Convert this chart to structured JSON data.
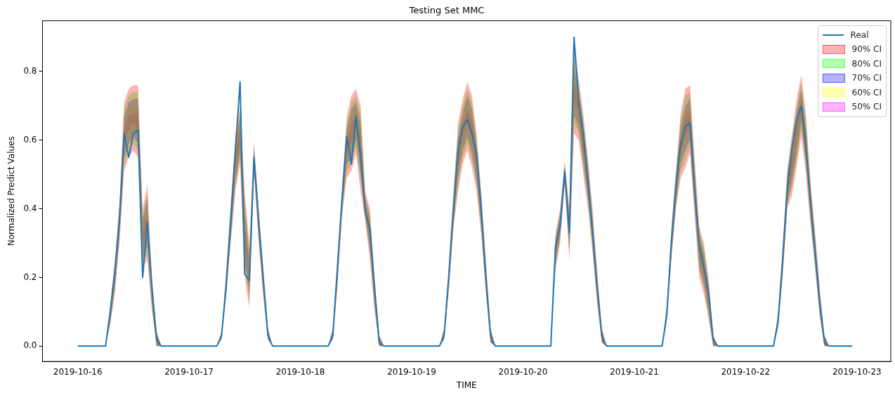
{
  "chart_data": {
    "type": "line",
    "title": "Testing Set MMC",
    "xlabel": "TIME",
    "ylabel": "Normalized Predict Values",
    "x": [
      "2019-10-16T00:00",
      "2019-10-16T06:00",
      "2019-10-16T07:00",
      "2019-10-16T08:00",
      "2019-10-16T09:00",
      "2019-10-16T10:00",
      "2019-10-16T11:00",
      "2019-10-16T12:00",
      "2019-10-16T13:00",
      "2019-10-16T14:00",
      "2019-10-16T15:00",
      "2019-10-16T16:00",
      "2019-10-16T17:00",
      "2019-10-16T18:00",
      "2019-10-17T06:00",
      "2019-10-17T07:00",
      "2019-10-17T08:00",
      "2019-10-17T09:00",
      "2019-10-17T10:00",
      "2019-10-17T11:00",
      "2019-10-17T12:00",
      "2019-10-17T13:00",
      "2019-10-17T14:00",
      "2019-10-17T15:00",
      "2019-10-17T16:00",
      "2019-10-17T17:00",
      "2019-10-17T18:00",
      "2019-10-18T06:00",
      "2019-10-18T07:00",
      "2019-10-18T08:00",
      "2019-10-18T09:00",
      "2019-10-18T10:00",
      "2019-10-18T11:00",
      "2019-10-18T12:00",
      "2019-10-18T13:00",
      "2019-10-18T14:00",
      "2019-10-18T15:00",
      "2019-10-18T16:00",
      "2019-10-18T17:00",
      "2019-10-18T18:00",
      "2019-10-19T06:00",
      "2019-10-19T07:00",
      "2019-10-19T08:00",
      "2019-10-19T09:00",
      "2019-10-19T10:00",
      "2019-10-19T11:00",
      "2019-10-19T12:00",
      "2019-10-19T13:00",
      "2019-10-19T14:00",
      "2019-10-19T15:00",
      "2019-10-19T16:00",
      "2019-10-19T17:00",
      "2019-10-19T18:00",
      "2019-10-20T06:00",
      "2019-10-20T07:00",
      "2019-10-20T08:00",
      "2019-10-20T09:00",
      "2019-10-20T10:00",
      "2019-10-20T11:00",
      "2019-10-20T12:00",
      "2019-10-20T13:00",
      "2019-10-20T14:00",
      "2019-10-20T15:00",
      "2019-10-20T16:00",
      "2019-10-20T17:00",
      "2019-10-20T18:00",
      "2019-10-21T06:00",
      "2019-10-21T07:00",
      "2019-10-21T08:00",
      "2019-10-21T09:00",
      "2019-10-21T10:00",
      "2019-10-21T11:00",
      "2019-10-21T12:00",
      "2019-10-21T13:00",
      "2019-10-21T14:00",
      "2019-10-21T15:00",
      "2019-10-21T16:00",
      "2019-10-21T17:00",
      "2019-10-21T18:00",
      "2019-10-22T06:00",
      "2019-10-22T07:00",
      "2019-10-22T08:00",
      "2019-10-22T09:00",
      "2019-10-22T10:00",
      "2019-10-22T11:00",
      "2019-10-22T12:00",
      "2019-10-22T13:00",
      "2019-10-22T14:00",
      "2019-10-22T15:00",
      "2019-10-22T16:00",
      "2019-10-22T17:00",
      "2019-10-22T18:00",
      "2019-10-22T23:00"
    ],
    "series": [
      {
        "name": "Real",
        "color": "#1f77b4",
        "values": [
          0,
          0,
          0.1,
          0.22,
          0.37,
          0.62,
          0.55,
          0.62,
          0.63,
          0.2,
          0.36,
          0.17,
          0.02,
          0,
          0,
          0.03,
          0.17,
          0.37,
          0.57,
          0.77,
          0.21,
          0.19,
          0.55,
          0.37,
          0.2,
          0.03,
          0,
          0,
          0.03,
          0.23,
          0.43,
          0.61,
          0.53,
          0.67,
          0.55,
          0.39,
          0.34,
          0.17,
          0.01,
          0,
          0,
          0.03,
          0.2,
          0.4,
          0.57,
          0.64,
          0.66,
          0.62,
          0.56,
          0.4,
          0.2,
          0.03,
          0,
          0,
          0.29,
          0.35,
          0.51,
          0.33,
          0.9,
          0.72,
          0.62,
          0.48,
          0.33,
          0.17,
          0.03,
          0,
          0,
          0.09,
          0.3,
          0.47,
          0.59,
          0.64,
          0.65,
          0.45,
          0.3,
          0.23,
          0.16,
          0.02,
          0,
          0,
          0.07,
          0.25,
          0.46,
          0.58,
          0.66,
          0.7,
          0.58,
          0.42,
          0.27,
          0.12,
          0.01,
          0,
          0
        ]
      },
      {
        "name": "90% CI",
        "color": "#ff0000",
        "values": [
          null,
          null,
          null,
          null,
          null,
          null,
          null,
          null,
          null,
          null,
          null,
          null,
          null,
          null,
          null,
          null,
          null,
          null,
          null,
          null,
          null,
          null,
          null,
          null,
          null,
          null,
          null,
          null,
          null,
          null,
          null,
          null,
          null,
          null,
          null,
          null,
          null,
          null,
          null,
          null,
          null,
          null,
          null,
          null,
          null,
          null,
          null,
          null,
          null,
          null,
          null,
          null,
          null,
          null,
          null,
          null,
          null,
          null,
          null,
          null,
          null,
          null,
          null,
          null,
          null,
          null,
          null,
          null,
          null,
          null,
          null,
          null,
          null,
          null,
          null,
          null,
          null,
          null,
          null,
          null,
          null,
          null,
          null,
          null,
          null,
          null,
          null,
          null,
          null,
          null,
          null,
          null,
          null
        ],
        "lower": [
          0,
          0,
          0.06,
          0.15,
          0.3,
          0.51,
          0.55,
          0.57,
          0.55,
          0.23,
          0.25,
          0.1,
          0,
          0,
          0,
          0.02,
          0.15,
          0.3,
          0.45,
          0.53,
          0.2,
          0.11,
          0.5,
          0.3,
          0.14,
          0.02,
          0,
          0,
          0.02,
          0.17,
          0.38,
          0.49,
          0.51,
          0.56,
          0.45,
          0.36,
          0.25,
          0.1,
          0,
          0,
          0,
          0.02,
          0.16,
          0.34,
          0.45,
          0.53,
          0.57,
          0.52,
          0.45,
          0.32,
          0.15,
          0.01,
          0,
          0,
          0.22,
          0.3,
          0.47,
          0.25,
          0.62,
          0.6,
          0.5,
          0.4,
          0.27,
          0.12,
          0.01,
          0,
          0,
          0.07,
          0.25,
          0.4,
          0.49,
          0.52,
          0.56,
          0.38,
          0.2,
          0.15,
          0.08,
          0,
          0,
          0,
          0.05,
          0.2,
          0.4,
          0.44,
          0.52,
          0.61,
          0.5,
          0.35,
          0.22,
          0.08,
          0,
          0,
          0
        ],
        "upper": [
          0,
          0,
          0.12,
          0.25,
          0.42,
          0.71,
          0.75,
          0.76,
          0.76,
          0.4,
          0.47,
          0.2,
          0.04,
          0,
          0,
          0.04,
          0.22,
          0.42,
          0.62,
          0.7,
          0.45,
          0.3,
          0.6,
          0.4,
          0.22,
          0.05,
          0,
          0,
          0.05,
          0.26,
          0.47,
          0.67,
          0.73,
          0.75,
          0.7,
          0.45,
          0.4,
          0.2,
          0.03,
          0,
          0,
          0.05,
          0.24,
          0.45,
          0.65,
          0.72,
          0.77,
          0.73,
          0.62,
          0.45,
          0.25,
          0.05,
          0,
          0,
          0.33,
          0.4,
          0.54,
          0.4,
          0.87,
          0.78,
          0.68,
          0.55,
          0.4,
          0.22,
          0.05,
          0,
          0,
          0.12,
          0.35,
          0.52,
          0.68,
          0.75,
          0.76,
          0.55,
          0.35,
          0.3,
          0.2,
          0.03,
          0,
          0,
          0.1,
          0.3,
          0.52,
          0.62,
          0.72,
          0.79,
          0.68,
          0.48,
          0.33,
          0.17,
          0.03,
          0,
          0
        ]
      },
      {
        "name": "80% CI",
        "color": "#00ff00",
        "values": [
          null,
          null,
          null,
          null,
          null,
          null,
          null,
          null,
          null,
          null,
          null,
          null,
          null,
          null,
          null,
          null,
          null,
          null,
          null,
          null,
          null,
          null,
          null,
          null,
          null,
          null,
          null,
          null,
          null,
          null,
          null,
          null,
          null,
          null,
          null,
          null,
          null,
          null,
          null,
          null,
          null,
          null,
          null,
          null,
          null,
          null,
          null,
          null,
          null,
          null,
          null,
          null,
          null,
          null,
          null,
          null,
          null,
          null,
          null,
          null,
          null,
          null,
          null,
          null,
          null,
          null,
          null,
          null,
          null,
          null,
          null,
          null,
          null,
          null,
          null,
          null,
          null,
          null,
          null,
          null,
          null,
          null,
          null,
          null,
          null,
          null,
          null,
          null,
          null,
          null,
          null,
          null,
          null
        ],
        "lower": [
          0,
          0,
          0.07,
          0.16,
          0.31,
          0.53,
          0.57,
          0.59,
          0.57,
          0.25,
          0.27,
          0.11,
          0,
          0,
          0,
          0.02,
          0.16,
          0.31,
          0.47,
          0.55,
          0.23,
          0.13,
          0.51,
          0.31,
          0.15,
          0.02,
          0,
          0,
          0.02,
          0.18,
          0.39,
          0.51,
          0.53,
          0.58,
          0.48,
          0.37,
          0.27,
          0.11,
          0,
          0,
          0,
          0.02,
          0.17,
          0.35,
          0.47,
          0.55,
          0.59,
          0.54,
          0.47,
          0.33,
          0.16,
          0.01,
          0,
          0,
          0.23,
          0.31,
          0.48,
          0.27,
          0.65,
          0.62,
          0.52,
          0.42,
          0.28,
          0.13,
          0.01,
          0,
          0,
          0.08,
          0.26,
          0.41,
          0.51,
          0.54,
          0.58,
          0.4,
          0.22,
          0.17,
          0.09,
          0,
          0,
          0,
          0.06,
          0.21,
          0.41,
          0.46,
          0.54,
          0.63,
          0.52,
          0.36,
          0.23,
          0.09,
          0,
          0,
          0
        ],
        "upper": [
          0,
          0,
          0.11,
          0.24,
          0.41,
          0.69,
          0.73,
          0.74,
          0.74,
          0.38,
          0.45,
          0.19,
          0.04,
          0,
          0,
          0.04,
          0.21,
          0.41,
          0.6,
          0.68,
          0.43,
          0.28,
          0.59,
          0.39,
          0.21,
          0.05,
          0,
          0,
          0.05,
          0.25,
          0.46,
          0.65,
          0.71,
          0.73,
          0.68,
          0.44,
          0.39,
          0.19,
          0.03,
          0,
          0,
          0.05,
          0.23,
          0.44,
          0.63,
          0.7,
          0.75,
          0.71,
          0.6,
          0.44,
          0.24,
          0.05,
          0,
          0,
          0.32,
          0.39,
          0.53,
          0.39,
          0.85,
          0.76,
          0.66,
          0.54,
          0.39,
          0.21,
          0.05,
          0,
          0,
          0.12,
          0.34,
          0.51,
          0.66,
          0.73,
          0.74,
          0.53,
          0.34,
          0.29,
          0.19,
          0.03,
          0,
          0,
          0.1,
          0.29,
          0.51,
          0.6,
          0.7,
          0.77,
          0.66,
          0.47,
          0.32,
          0.16,
          0.03,
          0,
          0
        ]
      },
      {
        "name": "70% CI",
        "color": "#0000ff",
        "values": [
          null,
          null,
          null,
          null,
          null,
          null,
          null,
          null,
          null,
          null,
          null,
          null,
          null,
          null,
          null,
          null,
          null,
          null,
          null,
          null,
          null,
          null,
          null,
          null,
          null,
          null,
          null,
          null,
          null,
          null,
          null,
          null,
          null,
          null,
          null,
          null,
          null,
          null,
          null,
          null,
          null,
          null,
          null,
          null,
          null,
          null,
          null,
          null,
          null,
          null,
          null,
          null,
          null,
          null,
          null,
          null,
          null,
          null,
          null,
          null,
          null,
          null,
          null,
          null,
          null,
          null,
          null,
          null,
          null,
          null,
          null,
          null,
          null,
          null,
          null,
          null,
          null,
          null,
          null,
          null,
          null,
          null,
          null,
          null,
          null,
          null,
          null,
          null,
          null,
          null,
          null,
          null,
          null
        ],
        "lower": [
          0,
          0,
          0.07,
          0.17,
          0.32,
          0.55,
          0.59,
          0.61,
          0.59,
          0.26,
          0.29,
          0.12,
          0,
          0,
          0,
          0.02,
          0.16,
          0.32,
          0.48,
          0.56,
          0.25,
          0.15,
          0.52,
          0.32,
          0.16,
          0.02,
          0,
          0,
          0.02,
          0.19,
          0.4,
          0.53,
          0.55,
          0.6,
          0.5,
          0.38,
          0.28,
          0.12,
          0,
          0,
          0,
          0.02,
          0.18,
          0.36,
          0.49,
          0.57,
          0.61,
          0.56,
          0.48,
          0.35,
          0.17,
          0.01,
          0,
          0,
          0.24,
          0.32,
          0.48,
          0.28,
          0.67,
          0.64,
          0.54,
          0.43,
          0.3,
          0.14,
          0.01,
          0,
          0,
          0.08,
          0.27,
          0.42,
          0.53,
          0.57,
          0.6,
          0.41,
          0.23,
          0.18,
          0.1,
          0,
          0,
          0,
          0.06,
          0.22,
          0.42,
          0.48,
          0.56,
          0.65,
          0.54,
          0.38,
          0.24,
          0.1,
          0,
          0,
          0
        ],
        "upper": [
          0,
          0,
          0.11,
          0.23,
          0.4,
          0.67,
          0.71,
          0.72,
          0.72,
          0.37,
          0.43,
          0.18,
          0.04,
          0,
          0,
          0.04,
          0.21,
          0.4,
          0.59,
          0.67,
          0.4,
          0.26,
          0.58,
          0.38,
          0.2,
          0.05,
          0,
          0,
          0.05,
          0.24,
          0.45,
          0.63,
          0.69,
          0.71,
          0.65,
          0.43,
          0.37,
          0.18,
          0.03,
          0,
          0,
          0.05,
          0.22,
          0.43,
          0.61,
          0.68,
          0.73,
          0.69,
          0.59,
          0.42,
          0.23,
          0.05,
          0,
          0,
          0.31,
          0.38,
          0.53,
          0.37,
          0.82,
          0.74,
          0.64,
          0.52,
          0.37,
          0.2,
          0.05,
          0,
          0,
          0.11,
          0.33,
          0.5,
          0.64,
          0.7,
          0.72,
          0.52,
          0.32,
          0.27,
          0.18,
          0.03,
          0,
          0,
          0.09,
          0.28,
          0.5,
          0.58,
          0.68,
          0.75,
          0.64,
          0.45,
          0.31,
          0.15,
          0.03,
          0,
          0
        ]
      },
      {
        "name": "60% CI",
        "color": "#ffff00",
        "values": [
          null,
          null,
          null,
          null,
          null,
          null,
          null,
          null,
          null,
          null,
          null,
          null,
          null,
          null,
          null,
          null,
          null,
          null,
          null,
          null,
          null,
          null,
          null,
          null,
          null,
          null,
          null,
          null,
          null,
          null,
          null,
          null,
          null,
          null,
          null,
          null,
          null,
          null,
          null,
          null,
          null,
          null,
          null,
          null,
          null,
          null,
          null,
          null,
          null,
          null,
          null,
          null,
          null,
          null,
          null,
          null,
          null,
          null,
          null,
          null,
          null,
          null,
          null,
          null,
          null,
          null,
          null,
          null,
          null,
          null,
          null,
          null,
          null,
          null,
          null,
          null,
          null,
          null,
          null,
          null,
          null,
          null,
          null,
          null,
          null,
          null,
          null,
          null,
          null,
          null,
          null,
          null,
          null
        ],
        "lower": [
          0,
          0,
          0.08,
          0.18,
          0.34,
          0.57,
          0.61,
          0.63,
          0.61,
          0.28,
          0.32,
          0.13,
          0,
          0,
          0,
          0.02,
          0.17,
          0.34,
          0.5,
          0.58,
          0.28,
          0.17,
          0.53,
          0.33,
          0.16,
          0.02,
          0,
          0,
          0.02,
          0.2,
          0.41,
          0.54,
          0.58,
          0.62,
          0.53,
          0.39,
          0.3,
          0.13,
          0,
          0,
          0,
          0.02,
          0.18,
          0.37,
          0.51,
          0.59,
          0.63,
          0.58,
          0.5,
          0.36,
          0.18,
          0.01,
          0,
          0,
          0.25,
          0.33,
          0.49,
          0.3,
          0.7,
          0.65,
          0.55,
          0.45,
          0.31,
          0.15,
          0.01,
          0,
          0,
          0.09,
          0.28,
          0.44,
          0.55,
          0.59,
          0.62,
          0.43,
          0.25,
          0.2,
          0.12,
          0,
          0,
          0,
          0.07,
          0.23,
          0.44,
          0.49,
          0.58,
          0.66,
          0.55,
          0.39,
          0.25,
          0.11,
          0,
          0,
          0
        ],
        "upper": [
          0,
          0,
          0.1,
          0.22,
          0.38,
          0.65,
          0.69,
          0.7,
          0.7,
          0.35,
          0.4,
          0.17,
          0.04,
          0,
          0,
          0.04,
          0.2,
          0.38,
          0.57,
          0.65,
          0.38,
          0.24,
          0.57,
          0.37,
          0.2,
          0.05,
          0,
          0,
          0.05,
          0.23,
          0.44,
          0.62,
          0.66,
          0.69,
          0.63,
          0.42,
          0.36,
          0.17,
          0.03,
          0,
          0,
          0.05,
          0.22,
          0.42,
          0.59,
          0.66,
          0.71,
          0.67,
          0.57,
          0.41,
          0.22,
          0.05,
          0,
          0,
          0.3,
          0.37,
          0.52,
          0.36,
          0.8,
          0.73,
          0.63,
          0.51,
          0.36,
          0.19,
          0.05,
          0,
          0,
          0.11,
          0.32,
          0.48,
          0.62,
          0.68,
          0.7,
          0.5,
          0.31,
          0.26,
          0.16,
          0.03,
          0,
          0,
          0.09,
          0.27,
          0.48,
          0.57,
          0.66,
          0.74,
          0.63,
          0.44,
          0.3,
          0.14,
          0.03,
          0,
          0
        ]
      },
      {
        "name": "50% CI",
        "color": "#ff00ff",
        "values": [
          null,
          null,
          null,
          null,
          null,
          null,
          null,
          null,
          null,
          null,
          null,
          null,
          null,
          null,
          null,
          null,
          null,
          null,
          null,
          null,
          null,
          null,
          null,
          null,
          null,
          null,
          null,
          null,
          null,
          null,
          null,
          null,
          null,
          null,
          null,
          null,
          null,
          null,
          null,
          null,
          null,
          null,
          null,
          null,
          null,
          null,
          null,
          null,
          null,
          null,
          null,
          null,
          null,
          null,
          null,
          null,
          null,
          null,
          null,
          null,
          null,
          null,
          null,
          null,
          null,
          null,
          null,
          null,
          null,
          null,
          null,
          null,
          null,
          null,
          null,
          null,
          null,
          null,
          null,
          null,
          null,
          null,
          null,
          null,
          null,
          null,
          null,
          null,
          null,
          null,
          null,
          null,
          null
        ],
        "lower": [
          0,
          0,
          0.08,
          0.19,
          0.35,
          0.59,
          0.63,
          0.65,
          0.63,
          0.3,
          0.34,
          0.14,
          0,
          0,
          0,
          0.02,
          0.18,
          0.35,
          0.52,
          0.6,
          0.3,
          0.19,
          0.54,
          0.34,
          0.17,
          0.02,
          0,
          0,
          0.02,
          0.21,
          0.42,
          0.56,
          0.6,
          0.64,
          0.55,
          0.4,
          0.31,
          0.14,
          0,
          0,
          0,
          0.02,
          0.19,
          0.38,
          0.53,
          0.61,
          0.65,
          0.6,
          0.52,
          0.37,
          0.19,
          0.01,
          0,
          0,
          0.26,
          0.34,
          0.5,
          0.31,
          0.72,
          0.67,
          0.57,
          0.46,
          0.32,
          0.16,
          0.01,
          0,
          0,
          0.09,
          0.29,
          0.45,
          0.57,
          0.61,
          0.64,
          0.45,
          0.26,
          0.21,
          0.13,
          0,
          0,
          0,
          0.07,
          0.24,
          0.45,
          0.51,
          0.6,
          0.68,
          0.57,
          0.4,
          0.26,
          0.12,
          0,
          0,
          0
        ],
        "upper": [
          0,
          0,
          0.1,
          0.21,
          0.37,
          0.63,
          0.67,
          0.68,
          0.68,
          0.33,
          0.38,
          0.16,
          0.04,
          0,
          0,
          0.04,
          0.19,
          0.37,
          0.55,
          0.63,
          0.35,
          0.22,
          0.56,
          0.36,
          0.19,
          0.05,
          0,
          0,
          0.05,
          0.22,
          0.43,
          0.6,
          0.64,
          0.67,
          0.6,
          0.41,
          0.34,
          0.16,
          0.03,
          0,
          0,
          0.05,
          0.21,
          0.41,
          0.57,
          0.64,
          0.69,
          0.65,
          0.55,
          0.4,
          0.21,
          0.05,
          0,
          0,
          0.29,
          0.36,
          0.51,
          0.34,
          0.77,
          0.71,
          0.61,
          0.49,
          0.35,
          0.18,
          0.05,
          0,
          0,
          0.1,
          0.31,
          0.47,
          0.6,
          0.66,
          0.68,
          0.48,
          0.29,
          0.24,
          0.15,
          0.03,
          0,
          0,
          0.08,
          0.26,
          0.47,
          0.55,
          0.64,
          0.72,
          0.61,
          0.43,
          0.29,
          0.13,
          0.03,
          0,
          0
        ]
      }
    ],
    "xlim": [
      "2019-10-15T16:24",
      "2019-10-23T07:18"
    ],
    "xticks": [
      {
        "value": "2019-10-16",
        "label": "2019-10-16"
      },
      {
        "value": "2019-10-17",
        "label": "2019-10-17"
      },
      {
        "value": "2019-10-18",
        "label": "2019-10-18"
      },
      {
        "value": "2019-10-19",
        "label": "2019-10-19"
      },
      {
        "value": "2019-10-20",
        "label": "2019-10-20"
      },
      {
        "value": "2019-10-21",
        "label": "2019-10-21"
      },
      {
        "value": "2019-10-22",
        "label": "2019-10-22"
      },
      {
        "value": "2019-10-23",
        "label": "2019-10-23"
      }
    ],
    "ylim": [
      -0.045,
      0.948
    ],
    "yticks": [
      {
        "value": 0,
        "label": "0.0"
      },
      {
        "value": 0.2,
        "label": "0.2"
      },
      {
        "value": 0.4,
        "label": "0.4"
      },
      {
        "value": 0.6,
        "label": "0.6"
      },
      {
        "value": 0.8,
        "label": "0.8"
      }
    ],
    "grid": false,
    "legend": "top right"
  }
}
